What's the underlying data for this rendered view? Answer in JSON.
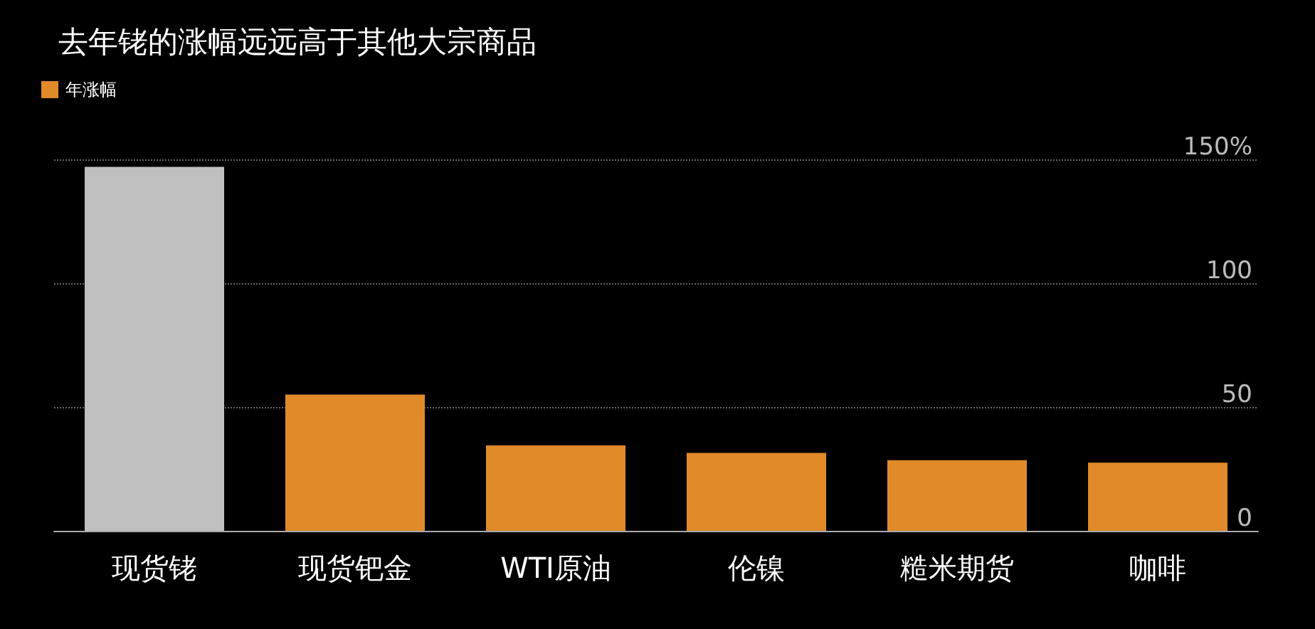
{
  "chart_data": {
    "type": "bar",
    "title": "去年铑的涨幅远远高于其他大宗商品",
    "categories": [
      "现货铑",
      "现货钯金",
      "WTI原油",
      "伦镍",
      "糙米期货",
      "咖啡"
    ],
    "series": [
      {
        "name": "年涨幅",
        "color": "#e08a2a",
        "colors": [
          "#c0c0c0",
          "#e08a2a",
          "#e08a2a",
          "#e08a2a",
          "#e08a2a",
          "#e08a2a"
        ],
        "values": [
          147,
          55,
          34.5,
          31.5,
          28.5,
          27.5
        ]
      }
    ],
    "ylim": [
      0,
      150
    ],
    "yticks": [
      0,
      50,
      100,
      {
        "value": 150,
        "label": "150%"
      }
    ],
    "grid": "y",
    "legend": "top left"
  }
}
